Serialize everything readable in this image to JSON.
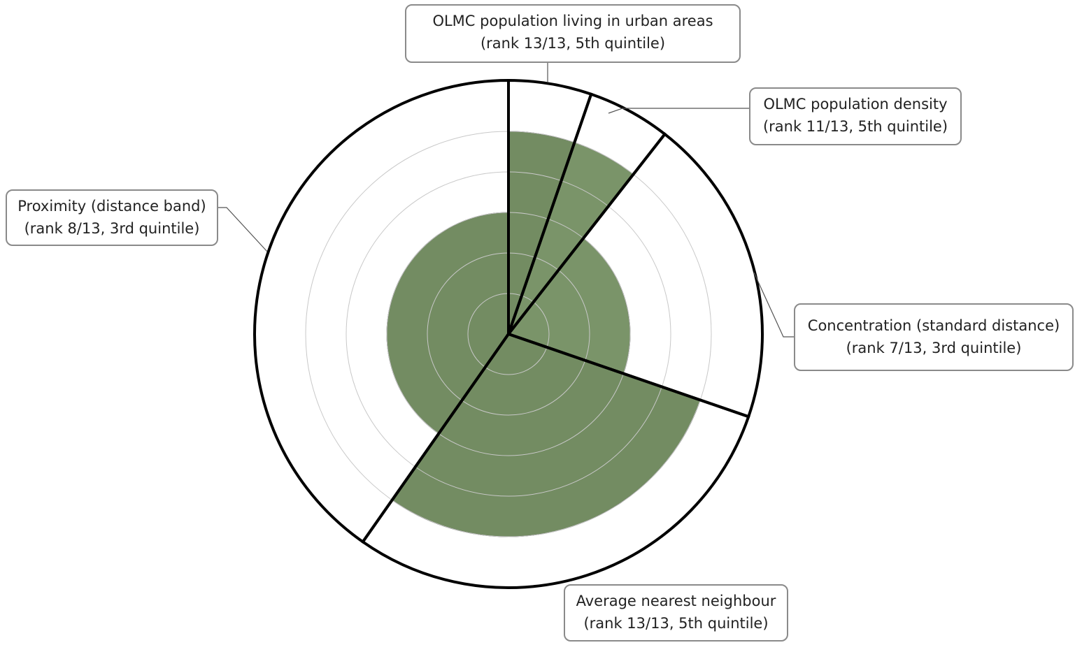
{
  "chart_data": {
    "type": "polar-area",
    "scale_max_quintile": 5,
    "grid": true,
    "colors": {
      "fill": "#738c62",
      "fill_light": "#7a9469",
      "outline": "#000000",
      "grid": "#c8c8c8",
      "callout_border": "#8a8a8a"
    },
    "segments": [
      {
        "label": "OLMC population living in urban areas",
        "detail": "(rank 13/13, 5th quintile)",
        "rank": 13,
        "of": 13,
        "quintile": 5,
        "start_deg": 0,
        "end_deg": 19
      },
      {
        "label": "OLMC population density",
        "detail": "(rank 11/13, 5th quintile)",
        "rank": 11,
        "of": 13,
        "quintile": 5,
        "start_deg": 19,
        "end_deg": 38
      },
      {
        "label": "Concentration (standard distance)",
        "detail": "(rank 7/13, 3rd quintile)",
        "rank": 7,
        "of": 13,
        "quintile": 3,
        "start_deg": 38,
        "end_deg": 109
      },
      {
        "label": "Average nearest neighbour",
        "detail": "(rank 13/13, 5th quintile)",
        "rank": 13,
        "of": 13,
        "quintile": 5,
        "start_deg": 109,
        "end_deg": 215
      },
      {
        "label": "Proximity (distance band)",
        "detail": "(rank 8/13, 3rd quintile)",
        "rank": 8,
        "of": 13,
        "quintile": 3,
        "start_deg": 215,
        "end_deg": 360
      }
    ]
  }
}
